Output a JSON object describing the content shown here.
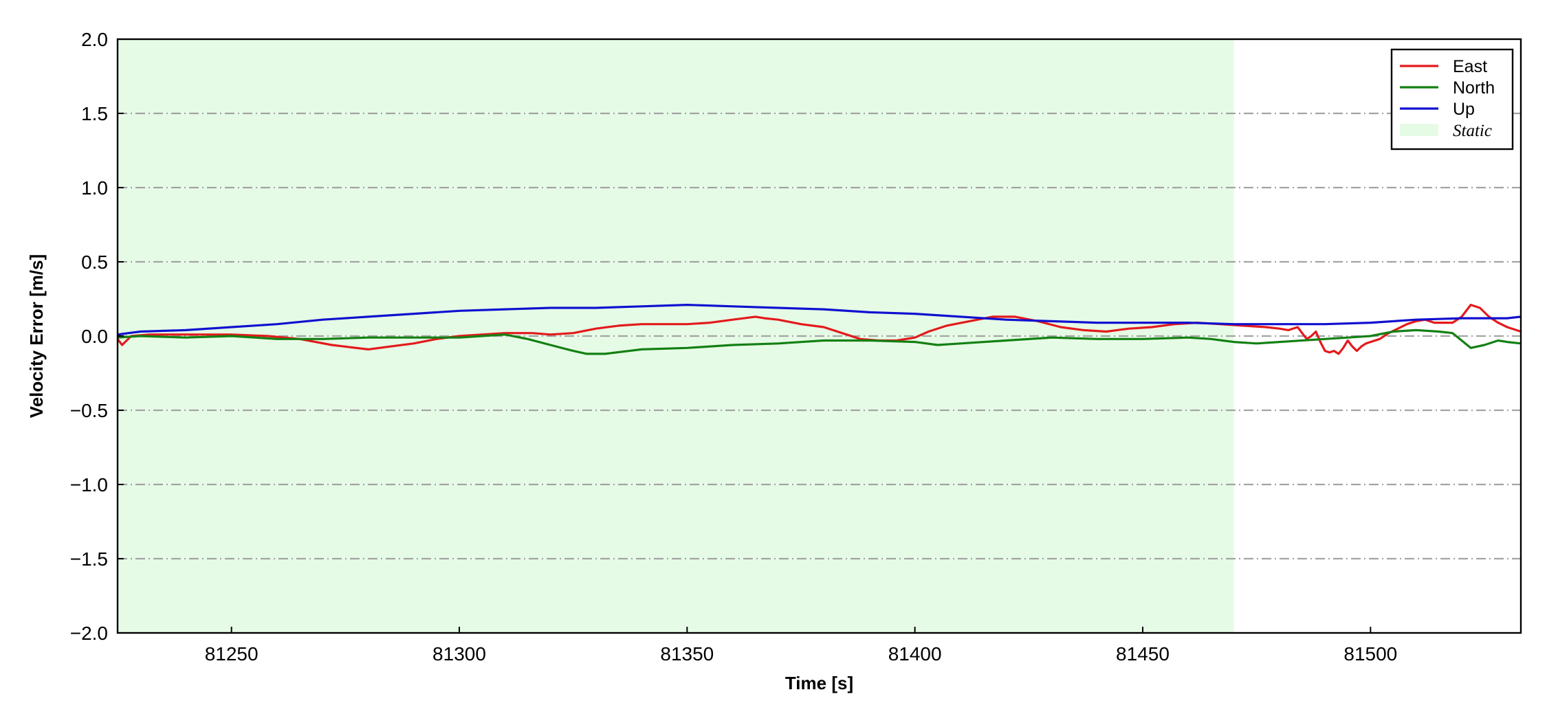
{
  "chart_data": {
    "type": "line",
    "title": "",
    "xlabel": "Time [s]",
    "ylabel": "Velocity Error [m/s]",
    "xlim": [
      81225,
      81533
    ],
    "ylim": [
      -2.0,
      2.0
    ],
    "xticks": [
      81250,
      81300,
      81350,
      81400,
      81450,
      81500
    ],
    "yticks": [
      -2.0,
      -1.5,
      -1.0,
      -0.5,
      0.0,
      0.5,
      1.0,
      1.5,
      2.0
    ],
    "ytick_labels": [
      "−2.0",
      "−1.5",
      "−1.0",
      "−0.5",
      "0.0",
      "0.5",
      "1.0",
      "1.5",
      "2.0"
    ],
    "grid": "horizontal dash-dot",
    "legend_position": "top-right",
    "static_region": {
      "label": "Static",
      "x_start": 81225,
      "x_end": 81470,
      "color": "#e6fbe6"
    },
    "series": [
      {
        "name": "East",
        "color": "#e31a1c",
        "x": [
          81225,
          81226,
          81228,
          81232,
          81240,
          81250,
          81258,
          81265,
          81272,
          81280,
          81285,
          81290,
          81295,
          81300,
          81305,
          81310,
          81316,
          81320,
          81325,
          81330,
          81335,
          81340,
          81345,
          81350,
          81355,
          81360,
          81365,
          81367,
          81370,
          81375,
          81380,
          81385,
          81388,
          81392,
          81396,
          81400,
          81403,
          81407,
          81412,
          81417,
          81422,
          81427,
          81432,
          81437,
          81442,
          81447,
          81452,
          81457,
          81462,
          81467,
          81472,
          81477,
          81480,
          81482,
          81484,
          81485,
          81486,
          81487,
          81488,
          81489,
          81490,
          81491,
          81492,
          81493,
          81494,
          81495,
          81496,
          81497,
          81498,
          81499,
          81500,
          81502,
          81504,
          81506,
          81508,
          81510,
          81512,
          81514,
          81516,
          81518,
          81520,
          81522,
          81524,
          81526,
          81528,
          81530,
          81533
        ],
        "y": [
          -0.02,
          -0.06,
          0.0,
          0.01,
          0.01,
          0.01,
          0.0,
          -0.02,
          -0.06,
          -0.09,
          -0.07,
          -0.05,
          -0.02,
          0.0,
          0.01,
          0.02,
          0.02,
          0.01,
          0.02,
          0.05,
          0.07,
          0.08,
          0.08,
          0.08,
          0.09,
          0.11,
          0.13,
          0.12,
          0.11,
          0.08,
          0.06,
          0.01,
          -0.02,
          -0.03,
          -0.03,
          -0.01,
          0.03,
          0.07,
          0.1,
          0.13,
          0.13,
          0.1,
          0.06,
          0.04,
          0.03,
          0.05,
          0.06,
          0.08,
          0.09,
          0.08,
          0.07,
          0.06,
          0.05,
          0.04,
          0.06,
          0.02,
          -0.02,
          0.0,
          0.03,
          -0.04,
          -0.1,
          -0.11,
          -0.1,
          -0.12,
          -0.08,
          -0.03,
          -0.07,
          -0.1,
          -0.07,
          -0.05,
          -0.04,
          -0.02,
          0.02,
          0.05,
          0.08,
          0.1,
          0.11,
          0.09,
          0.09,
          0.09,
          0.13,
          0.21,
          0.19,
          0.13,
          0.09,
          0.06,
          0.03
        ]
      },
      {
        "name": "North",
        "color": "#138013",
        "x": [
          81225,
          81230,
          81240,
          81250,
          81260,
          81270,
          81280,
          81290,
          81300,
          81305,
          81310,
          81315,
          81320,
          81325,
          81328,
          81332,
          81340,
          81350,
          81360,
          81370,
          81380,
          81390,
          81400,
          81405,
          81410,
          81420,
          81430,
          81440,
          81450,
          81460,
          81465,
          81470,
          81475,
          81480,
          81490,
          81495,
          81500,
          81505,
          81510,
          81515,
          81518,
          81520,
          81522,
          81525,
          81528,
          81530,
          81533
        ],
        "y": [
          -0.01,
          0.0,
          -0.01,
          0.0,
          -0.02,
          -0.02,
          -0.01,
          -0.01,
          -0.01,
          0.0,
          0.01,
          -0.02,
          -0.06,
          -0.1,
          -0.12,
          -0.12,
          -0.09,
          -0.08,
          -0.06,
          -0.05,
          -0.03,
          -0.03,
          -0.04,
          -0.06,
          -0.05,
          -0.03,
          -0.01,
          -0.02,
          -0.02,
          -0.01,
          -0.02,
          -0.04,
          -0.05,
          -0.04,
          -0.02,
          -0.01,
          0.0,
          0.03,
          0.04,
          0.03,
          0.02,
          -0.03,
          -0.08,
          -0.06,
          -0.03,
          -0.04,
          -0.05
        ]
      },
      {
        "name": "Up",
        "color": "#1010d0",
        "x": [
          81225,
          81230,
          81240,
          81250,
          81260,
          81270,
          81280,
          81290,
          81300,
          81310,
          81320,
          81330,
          81340,
          81350,
          81360,
          81370,
          81380,
          81390,
          81400,
          81410,
          81420,
          81430,
          81440,
          81450,
          81460,
          81470,
          81480,
          81490,
          81500,
          81510,
          81520,
          81530,
          81533
        ],
        "y": [
          0.01,
          0.03,
          0.04,
          0.06,
          0.08,
          0.11,
          0.13,
          0.15,
          0.17,
          0.18,
          0.19,
          0.19,
          0.2,
          0.21,
          0.2,
          0.19,
          0.18,
          0.16,
          0.15,
          0.13,
          0.11,
          0.1,
          0.09,
          0.09,
          0.09,
          0.08,
          0.08,
          0.08,
          0.09,
          0.11,
          0.12,
          0.12,
          0.13
        ]
      }
    ]
  }
}
